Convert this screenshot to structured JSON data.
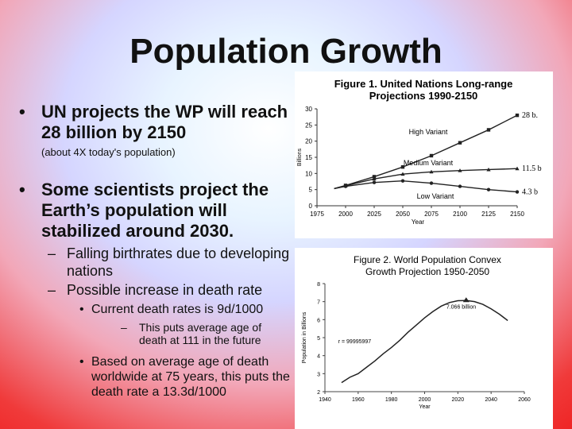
{
  "slide": {
    "title": "Population Growth",
    "bullet1": "UN projects the WP will reach 28 billion by 2150",
    "bullet1_note": "(about 4X today's population)",
    "bullet2": "Some scientists project the Earth’s population will stabilized around 2030.",
    "dash1": "Falling birthrates due to developing nations",
    "dash2": "Possible increase in death rate",
    "sub_a": "Current death rates is 9d/1000",
    "sub_a_note": "This puts average age of death at 111 in the future",
    "sub_b": "Based on average age of death worldwide at 75 years, this puts the death rate a 13.3d/1000",
    "bullet_glyph": "•",
    "dash_glyph": "–"
  },
  "chart_data": [
    {
      "type": "line",
      "title_line1": "Figure 1.  United Nations Long-range",
      "title_line2": "Projections 1990-2150",
      "ylabel": "Billions",
      "xlabel": "Year",
      "xlim": [
        1975,
        2150
      ],
      "ylim": [
        0,
        30
      ],
      "xticks": [
        1975,
        2000,
        2025,
        2050,
        2075,
        2100,
        2125,
        2150
      ],
      "yticks": [
        0,
        5,
        10,
        15,
        20,
        25,
        30
      ],
      "series": [
        {
          "name": "High Variant",
          "end_label": "28 b.",
          "x": [
            1990,
            2000,
            2025,
            2050,
            2075,
            2100,
            2125,
            2150
          ],
          "values": [
            5.3,
            6.3,
            9.0,
            12.0,
            15.5,
            19.5,
            23.5,
            28.0
          ]
        },
        {
          "name": "Medium Variant",
          "end_label": "11.5 b",
          "x": [
            1990,
            2000,
            2025,
            2050,
            2075,
            2100,
            2125,
            2150
          ],
          "values": [
            5.3,
            6.2,
            8.3,
            9.8,
            10.5,
            10.9,
            11.2,
            11.5
          ]
        },
        {
          "name": "Low Variant",
          "end_label": "4.3 b",
          "x": [
            1990,
            2000,
            2025,
            2050,
            2075,
            2100,
            2125,
            2150
          ],
          "values": [
            5.3,
            6.0,
            7.2,
            7.7,
            7.0,
            6.0,
            5.0,
            4.3
          ]
        }
      ]
    },
    {
      "type": "line",
      "title_line1": "Figure 2.  World Population Convex",
      "title_line2": "Growth Projection  1950-2050",
      "ylabel": "Population in Billions",
      "xlabel": "Year",
      "xlim": [
        1940,
        2060
      ],
      "ylim": [
        2,
        8
      ],
      "xticks": [
        1940,
        1960,
        1980,
        2000,
        2020,
        2040,
        2060
      ],
      "yticks": [
        2,
        3,
        4,
        5,
        6,
        7,
        8
      ],
      "annotations": [
        "r =  99995997",
        "7.066 billion"
      ],
      "series": [
        {
          "x": [
            1950,
            1955,
            1960,
            1965,
            1970,
            1975,
            1980,
            1985,
            1990,
            1995,
            2000,
            2005,
            2010,
            2015,
            2020,
            2025,
            2030,
            2035,
            2040,
            2045,
            2050
          ],
          "values": [
            2.5,
            2.8,
            3.0,
            3.35,
            3.7,
            4.1,
            4.45,
            4.85,
            5.3,
            5.7,
            6.1,
            6.45,
            6.75,
            6.95,
            7.05,
            7.06,
            7.0,
            6.85,
            6.6,
            6.3,
            5.95
          ]
        }
      ]
    }
  ]
}
